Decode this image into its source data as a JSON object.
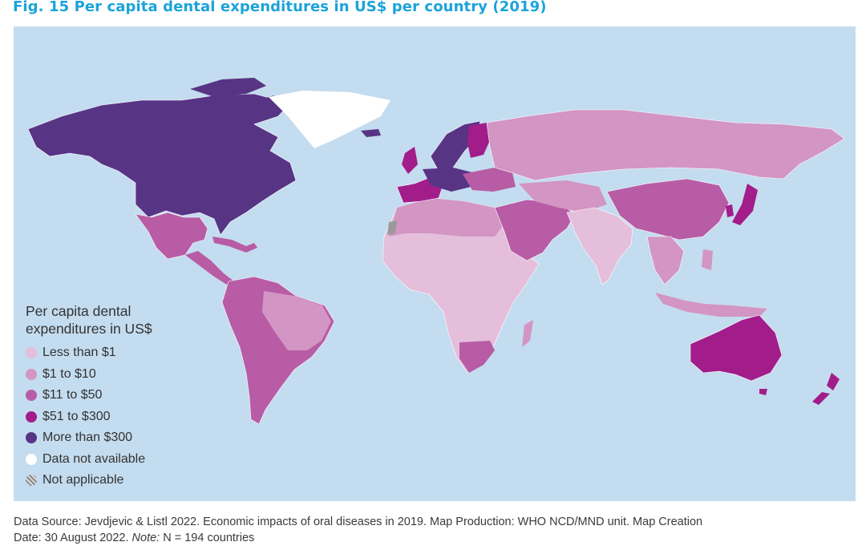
{
  "title": "Fig. 15  Per capita dental expenditures in US$ per country (2019)",
  "legend": {
    "title_line1": "Per capita dental",
    "title_line2": "expenditures in US$",
    "items": [
      {
        "label": "Less than $1",
        "color": "#e4bedb"
      },
      {
        "label": "$1 to $10",
        "color": "#d395c3"
      },
      {
        "label": "$11 to $50",
        "color": "#b85ca6"
      },
      {
        "label": "$51 to $300",
        "color": "#a21d8a"
      },
      {
        "label": "More than $300",
        "color": "#583485"
      },
      {
        "label": "Data not available",
        "color": "#ffffff"
      },
      {
        "label": "Not applicable",
        "color": "hatch"
      }
    ]
  },
  "colors": {
    "ocean": "#c4dcef",
    "title": "#1ba3d9",
    "lt1": "#e4bedb",
    "t1to10": "#d395c3",
    "t11to50": "#b85ca6",
    "t51to300": "#a21d8a",
    "gt300": "#583485",
    "na": "#ffffff"
  },
  "source": {
    "line1": "Data Source: Jevdjevic & Listl 2022. Economic impacts of oral diseases in 2019.  Map Production: WHO NCD/MND unit. Map Creation",
    "line2_prefix": "Date: 30 August 2022.  ",
    "note_label": "Note:",
    "note_text": " N = 194 countries"
  }
}
